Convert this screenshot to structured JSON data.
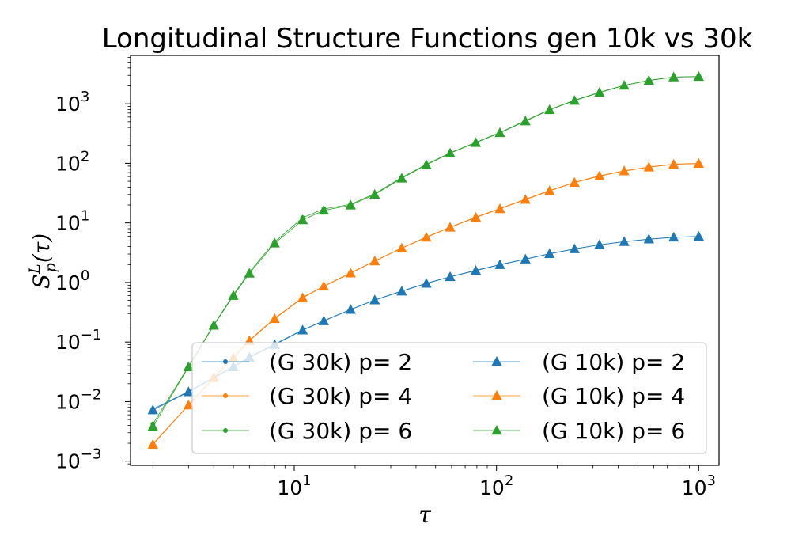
{
  "chart_data": {
    "type": "line",
    "title": "Longitudinal Structure Functions gen 10k vs 30k",
    "xlabel": "τ",
    "ylabel": "S_p^L(τ)",
    "xscale": "log",
    "yscale": "log",
    "xlim": [
      1.55,
      1260
    ],
    "ylim": [
      0.00085,
      6500
    ],
    "grid": false,
    "legend_position": "lower-right",
    "legend_columns": 2,
    "x_tick_labels": [
      {
        "base": "10",
        "exp": "1",
        "value": 10
      },
      {
        "base": "10",
        "exp": "2",
        "value": 100
      },
      {
        "base": "10",
        "exp": "3",
        "value": 1000
      }
    ],
    "y_tick_labels": [
      {
        "base": "10",
        "exp": "−3",
        "value": 0.001
      },
      {
        "base": "10",
        "exp": "−2",
        "value": 0.01
      },
      {
        "base": "10",
        "exp": "−1",
        "value": 0.1
      },
      {
        "base": "10",
        "exp": "0",
        "value": 1
      },
      {
        "base": "10",
        "exp": "1",
        "value": 10
      },
      {
        "base": "10",
        "exp": "2",
        "value": 100
      },
      {
        "base": "10",
        "exp": "3",
        "value": 1000
      }
    ],
    "x": [
      2,
      3,
      4,
      5,
      6,
      8,
      11,
      14,
      19,
      25,
      34,
      45,
      59,
      79,
      104,
      139,
      183,
      243,
      323,
      428,
      567,
      752,
      1000
    ],
    "series": [
      {
        "name": "(G 30k) p= 2",
        "marker": "circle",
        "color": "#1f77b4",
        "values": [
          0.0075,
          0.0148,
          0.0255,
          0.039,
          0.056,
          0.092,
          0.16,
          0.228,
          0.353,
          0.51,
          0.72,
          0.97,
          1.25,
          1.6,
          2.0,
          2.48,
          3.05,
          3.68,
          4.3,
          4.85,
          5.35,
          5.75,
          5.92
        ]
      },
      {
        "name": "(G 30k) p= 4",
        "marker": "circle",
        "color": "#ff7f0e",
        "values": [
          0.00195,
          0.0088,
          0.0255,
          0.055,
          0.107,
          0.25,
          0.56,
          0.87,
          1.45,
          2.3,
          3.8,
          5.8,
          8.5,
          12.5,
          17.5,
          25,
          35,
          48,
          62,
          75,
          87,
          97,
          100
        ]
      },
      {
        "name": "(G 30k) p= 6",
        "marker": "circle",
        "color": "#2ca02c",
        "values": [
          0.0042,
          0.039,
          0.195,
          0.62,
          1.5,
          4.8,
          12.2,
          17.2,
          20.5,
          31,
          58,
          96,
          150,
          225,
          330,
          520,
          800,
          1150,
          1560,
          2050,
          2480,
          2820,
          2880
        ]
      },
      {
        "name": "(G 10k) p= 2",
        "marker": "triangle",
        "color": "#1f77b4",
        "values": [
          0.0072,
          0.0145,
          0.025,
          0.038,
          0.055,
          0.09,
          0.158,
          0.225,
          0.35,
          0.505,
          0.71,
          0.96,
          1.24,
          1.58,
          1.98,
          2.45,
          3.02,
          3.65,
          4.28,
          4.82,
          5.32,
          5.72,
          5.9
        ]
      },
      {
        "name": "(G 10k) p= 4",
        "marker": "triangle",
        "color": "#ff7f0e",
        "values": [
          0.0019,
          0.0087,
          0.025,
          0.054,
          0.105,
          0.245,
          0.55,
          0.86,
          1.43,
          2.28,
          3.75,
          5.7,
          8.4,
          12.3,
          17.2,
          24.6,
          34.5,
          47.5,
          61,
          74,
          86,
          96,
          99
        ]
      },
      {
        "name": "(G 10k) p= 6",
        "marker": "triangle",
        "color": "#2ca02c",
        "values": [
          0.0038,
          0.038,
          0.19,
          0.6,
          1.42,
          4.55,
          11.2,
          16.2,
          19.8,
          30,
          56,
          94,
          148,
          222,
          325,
          510,
          790,
          1130,
          1540,
          2030,
          2460,
          2800,
          2860
        ]
      }
    ]
  }
}
